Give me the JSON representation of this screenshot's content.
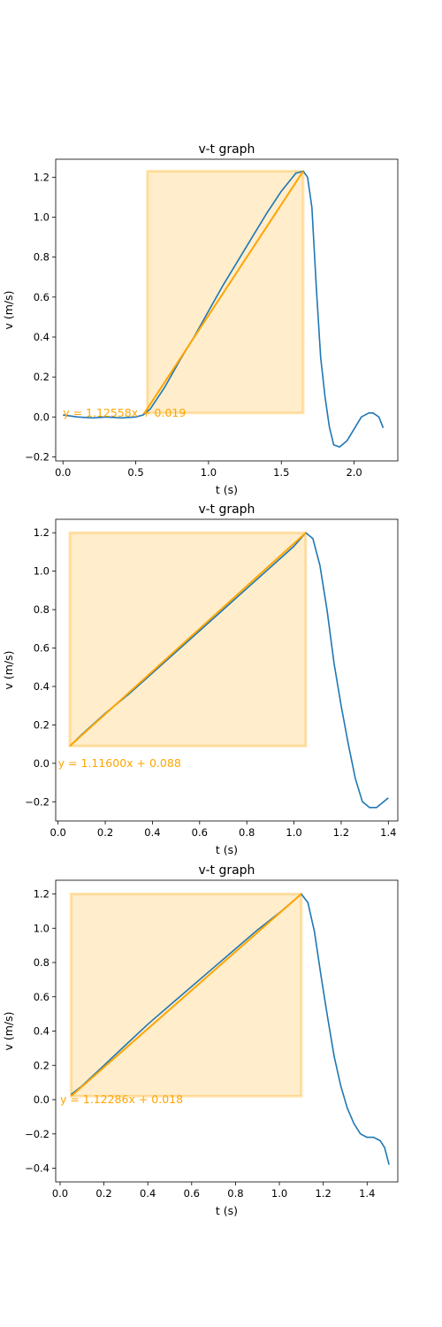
{
  "chart_data": [
    {
      "type": "line",
      "title": "v-t graph",
      "xlabel": "t (s)",
      "ylabel": "v (m/s)",
      "xlim": [
        -0.05,
        2.3
      ],
      "ylim": [
        -0.22,
        1.29
      ],
      "xticks": [
        0.0,
        0.5,
        1.0,
        1.5,
        2.0
      ],
      "xtick_labels": [
        "0.0",
        "0.5",
        "1.0",
        "1.5",
        "2.0"
      ],
      "yticks": [
        -0.2,
        0.0,
        0.2,
        0.4,
        0.6,
        0.8,
        1.0,
        1.2
      ],
      "ytick_labels": [
        "−0.2",
        "0.0",
        "0.2",
        "0.4",
        "0.6",
        "0.8",
        "1.0",
        "1.2"
      ],
      "grid": false,
      "series": [
        {
          "color": "#1f77b4",
          "x": [
            0.0,
            0.1,
            0.2,
            0.3,
            0.4,
            0.5,
            0.55,
            0.6,
            0.7,
            0.8,
            0.9,
            1.0,
            1.1,
            1.2,
            1.3,
            1.4,
            1.5,
            1.6,
            1.65,
            1.68,
            1.71,
            1.74,
            1.77,
            1.8,
            1.83,
            1.86,
            1.9,
            1.95,
            2.0,
            2.05,
            2.1,
            2.13,
            2.17,
            2.2
          ],
          "y": [
            0.01,
            0.0,
            -0.005,
            0.0,
            -0.005,
            0.0,
            0.01,
            0.04,
            0.15,
            0.28,
            0.4,
            0.53,
            0.66,
            0.78,
            0.9,
            1.02,
            1.13,
            1.22,
            1.23,
            1.2,
            1.05,
            0.65,
            0.3,
            0.1,
            -0.05,
            -0.14,
            -0.15,
            -0.12,
            -0.06,
            0.0,
            0.02,
            0.02,
            0.0,
            -0.055
          ]
        }
      ],
      "fit_line": {
        "color": "#ffa500",
        "x": [
          0.56,
          1.65
        ],
        "y": [
          0.02,
          1.23
        ]
      },
      "highlight": {
        "color": "#ffa500",
        "x_start": 0.58,
        "x_end": 1.65,
        "y_start": 0.02,
        "y_end": 1.23
      },
      "annotation": {
        "text": "y = 1.12558x + 0.019",
        "x": 0.0,
        "y": 0.019,
        "color": "#ffa500"
      }
    },
    {
      "type": "line",
      "title": "v-t graph",
      "xlabel": "t (s)",
      "ylabel": "v (m/s)",
      "xlim": [
        -0.01,
        1.44
      ],
      "ylim": [
        -0.3,
        1.27
      ],
      "xticks": [
        0.0,
        0.2,
        0.4,
        0.6,
        0.8,
        1.0,
        1.2,
        1.4
      ],
      "xtick_labels": [
        "0.0",
        "0.2",
        "0.4",
        "0.6",
        "0.8",
        "1.0",
        "1.2",
        "1.4"
      ],
      "yticks": [
        -0.2,
        0.0,
        0.2,
        0.4,
        0.6,
        0.8,
        1.0,
        1.2
      ],
      "ytick_labels": [
        "−0.2",
        "0.0",
        "0.2",
        "0.4",
        "0.6",
        "0.8",
        "1.0",
        "1.2"
      ],
      "grid": false,
      "series": [
        {
          "color": "#1f77b4",
          "x": [
            0.05,
            0.1,
            0.2,
            0.3,
            0.4,
            0.5,
            0.6,
            0.7,
            0.8,
            0.9,
            1.0,
            1.05,
            1.08,
            1.11,
            1.14,
            1.17,
            1.2,
            1.23,
            1.26,
            1.29,
            1.32,
            1.35,
            1.38,
            1.4
          ],
          "y": [
            0.09,
            0.15,
            0.26,
            0.36,
            0.47,
            0.58,
            0.69,
            0.8,
            0.91,
            1.02,
            1.13,
            1.2,
            1.17,
            1.03,
            0.8,
            0.52,
            0.3,
            0.1,
            -0.08,
            -0.2,
            -0.23,
            -0.23,
            -0.2,
            -0.18
          ]
        }
      ],
      "fit_line": {
        "color": "#ffa500",
        "x": [
          0.05,
          1.05
        ],
        "y": [
          0.09,
          1.2
        ]
      },
      "highlight": {
        "color": "#ffa500",
        "x_start": 0.05,
        "x_end": 1.05,
        "y_start": 0.09,
        "y_end": 1.2
      },
      "annotation": {
        "text": "y = 1.11600x + 0.088",
        "x": 0.0,
        "y": 0.0,
        "color": "#ffa500"
      }
    },
    {
      "type": "line",
      "title": "v-t graph",
      "xlabel": "t (s)",
      "ylabel": "v (m/s)",
      "xlim": [
        -0.02,
        1.54
      ],
      "ylim": [
        -0.48,
        1.28
      ],
      "xticks": [
        0.0,
        0.2,
        0.4,
        0.6,
        0.8,
        1.0,
        1.2,
        1.4
      ],
      "xtick_labels": [
        "0.0",
        "0.2",
        "0.4",
        "0.6",
        "0.8",
        "1.0",
        "1.2",
        "1.4"
      ],
      "yticks": [
        -0.4,
        -0.2,
        0.0,
        0.2,
        0.4,
        0.6,
        0.8,
        1.0,
        1.2
      ],
      "ytick_labels": [
        "−0.4",
        "−0.2",
        "0.0",
        "0.2",
        "0.4",
        "0.6",
        "0.8",
        "1.0",
        "1.2"
      ],
      "grid": false,
      "series": [
        {
          "color": "#1f77b4",
          "x": [
            0.05,
            0.1,
            0.2,
            0.3,
            0.4,
            0.5,
            0.6,
            0.7,
            0.8,
            0.9,
            1.0,
            1.1,
            1.13,
            1.16,
            1.19,
            1.22,
            1.25,
            1.28,
            1.31,
            1.34,
            1.37,
            1.4,
            1.43,
            1.46,
            1.48,
            1.5
          ],
          "y": [
            0.03,
            0.08,
            0.2,
            0.32,
            0.44,
            0.55,
            0.66,
            0.77,
            0.88,
            0.99,
            1.09,
            1.2,
            1.15,
            0.98,
            0.72,
            0.48,
            0.25,
            0.08,
            -0.05,
            -0.14,
            -0.2,
            -0.22,
            -0.22,
            -0.24,
            -0.28,
            -0.38
          ]
        }
      ],
      "fit_line": {
        "color": "#ffa500",
        "x": [
          0.05,
          1.1
        ],
        "y": [
          0.02,
          1.2
        ]
      },
      "highlight": {
        "color": "#ffa500",
        "x_start": 0.05,
        "x_end": 1.1,
        "y_start": 0.02,
        "y_end": 1.2
      },
      "annotation": {
        "text": "y = 1.12286x + 0.018",
        "x": 0.0,
        "y": 0.0,
        "color": "#ffa500"
      }
    }
  ]
}
